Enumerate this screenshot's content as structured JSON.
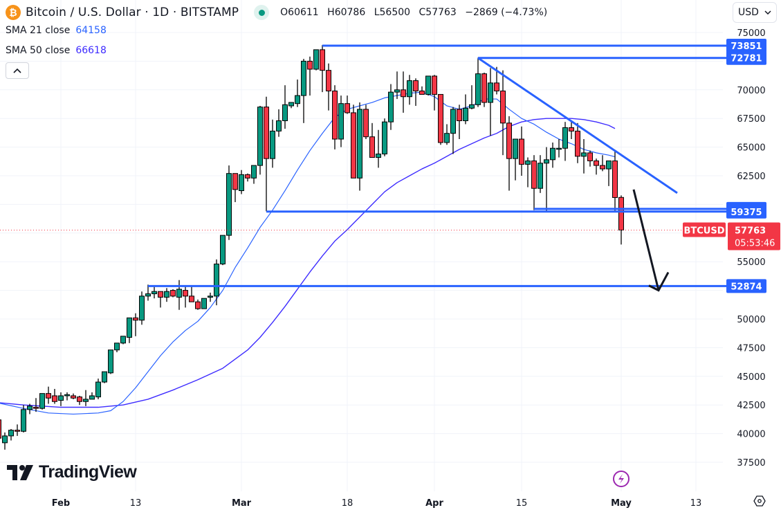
{
  "header": {
    "symbol_title": "Bitcoin / U.S. Dollar · 1D · BITSTAMP",
    "logo_glyph": "₿",
    "ohlc": {
      "open_label": "O",
      "open": "60611",
      "high_label": "H",
      "high": "60786",
      "low_label": "L",
      "low": "56500",
      "close_label": "C",
      "close": "57763",
      "change": "−2869 (−4.73%)"
    },
    "collapse_glyph": "⌃"
  },
  "indicators": [
    {
      "label": "SMA 21 close",
      "value": "64158",
      "color": "#2962ff"
    },
    {
      "label": "SMA 50 close",
      "value": "66618",
      "color": "#3d2bff"
    }
  ],
  "currency_select": {
    "value": "USD",
    "glyph": "⌄"
  },
  "branding": {
    "logo_text": "TradingView"
  },
  "price_tag": {
    "symbol": "BTCUSD",
    "price": "57763",
    "countdown": "05:53:46",
    "color": "#f23645"
  },
  "colors": {
    "up": "#089981",
    "down": "#f23645",
    "drawing": "#2962ff",
    "sma21": "#2962ff",
    "sma50": "#3d2bff",
    "grid": "#f0f3fa"
  },
  "chart_data": {
    "type": "candlestick",
    "title": "Bitcoin / U.S. Dollar · 1D · BITSTAMP",
    "xlabel": "",
    "ylabel": "USD",
    "ylim": [
      36000,
      76500
    ],
    "grid": true,
    "y_ticks": [
      75000,
      72500,
      70000,
      67500,
      65000,
      62500,
      60000,
      57500,
      55000,
      52500,
      50000,
      47500,
      45000,
      42500,
      40000,
      37500
    ],
    "y_tick_labels_visible": [
      "75000",
      "70000",
      "67500",
      "65000",
      "62500",
      "55000",
      "50000",
      "47500",
      "45000",
      "42500",
      "40000",
      "37500"
    ],
    "x_ticks": [
      {
        "label": "Feb",
        "day": 0,
        "bold": true
      },
      {
        "label": "13",
        "day": 12,
        "bold": false
      },
      {
        "label": "Mar",
        "day": 29,
        "bold": true
      },
      {
        "label": "18",
        "day": 46,
        "bold": false
      },
      {
        "label": "Apr",
        "day": 60,
        "bold": true
      },
      {
        "label": "15",
        "day": 74,
        "bold": false
      },
      {
        "label": "May",
        "day": 90,
        "bold": true
      },
      {
        "label": "13",
        "day": 102,
        "bold": false
      }
    ],
    "candles_note": "day = days from Feb 1 2024; [day, open, high, low, close]",
    "candles": [
      [
        -10,
        41200,
        42900,
        39800,
        39600
      ],
      [
        -9,
        39200,
        40100,
        38600,
        39800
      ],
      [
        -8,
        39800,
        40400,
        39400,
        40300
      ],
      [
        -7,
        40300,
        40800,
        39800,
        40200
      ],
      [
        -6,
        40200,
        42500,
        40100,
        42100
      ],
      [
        -5,
        42100,
        42600,
        41700,
        42400
      ],
      [
        -4,
        42300,
        43100,
        41900,
        42200
      ],
      [
        -3,
        42200,
        43500,
        42100,
        43500
      ],
      [
        -2,
        43500,
        44100,
        42600,
        43100
      ],
      [
        -1,
        43300,
        43900,
        42600,
        42800
      ],
      [
        0,
        42900,
        43600,
        42400,
        43300
      ],
      [
        1,
        43300,
        43600,
        42900,
        43400
      ],
      [
        2,
        43300,
        43500,
        43000,
        43100
      ],
      [
        3,
        43200,
        43300,
        42500,
        42800
      ],
      [
        4,
        42800,
        43800,
        42400,
        43000
      ],
      [
        5,
        43000,
        43600,
        43000,
        43300
      ],
      [
        6,
        43200,
        44800,
        43000,
        44500
      ],
      [
        7,
        44500,
        45400,
        44400,
        45400
      ],
      [
        8,
        45300,
        47300,
        45200,
        47300
      ],
      [
        9,
        47300,
        47700,
        47100,
        47900
      ],
      [
        10,
        47900,
        48500,
        47800,
        48500
      ],
      [
        11,
        48400,
        50100,
        47900,
        50100
      ],
      [
        12,
        50100,
        50500,
        48500,
        49900
      ],
      [
        13,
        49900,
        52400,
        49500,
        52000
      ],
      [
        14,
        52000,
        53000,
        51600,
        52200
      ],
      [
        15,
        52200,
        52800,
        51800,
        52400
      ],
      [
        16,
        52400,
        52400,
        51000,
        51900
      ],
      [
        17,
        51900,
        52700,
        51500,
        52400
      ],
      [
        18,
        52500,
        52600,
        51900,
        52000
      ],
      [
        19,
        51900,
        53400,
        50800,
        52600
      ],
      [
        20,
        52500,
        52900,
        51000,
        52000
      ],
      [
        21,
        52000,
        52800,
        51600,
        51500
      ],
      [
        22,
        51500,
        51700,
        50800,
        50900
      ],
      [
        23,
        50900,
        51800,
        50900,
        51800
      ],
      [
        24,
        51900,
        52300,
        51500,
        52000
      ],
      [
        25,
        52000,
        55200,
        51200,
        54800
      ],
      [
        26,
        54800,
        57300,
        54700,
        57300
      ],
      [
        27,
        57300,
        63400,
        56900,
        62700
      ],
      [
        28,
        62700,
        62300,
        60200,
        61300
      ],
      [
        29,
        61200,
        63000,
        60900,
        62600
      ],
      [
        30,
        62600,
        62700,
        62000,
        62300
      ],
      [
        31,
        62300,
        63400,
        61800,
        63400
      ],
      [
        32,
        63400,
        68600,
        62600,
        68500
      ],
      [
        33,
        68500,
        69400,
        59400,
        64000
      ],
      [
        34,
        64000,
        67400,
        63200,
        66400
      ],
      [
        35,
        66400,
        68300,
        65900,
        67300
      ],
      [
        36,
        67300,
        70400,
        66600,
        68700
      ],
      [
        37,
        68600,
        68900,
        68400,
        68900
      ],
      [
        38,
        68800,
        70900,
        68500,
        69500
      ],
      [
        39,
        69500,
        72700,
        67100,
        72500
      ],
      [
        40,
        72500,
        72900,
        69500,
        71800
      ],
      [
        41,
        71800,
        73400,
        71700,
        73500
      ],
      [
        42,
        73500,
        73900,
        69800,
        71700
      ],
      [
        43,
        71700,
        72300,
        68200,
        69900
      ],
      [
        44,
        69900,
        70400,
        64800,
        65700
      ],
      [
        45,
        65700,
        69500,
        65000,
        68800
      ],
      [
        46,
        68800,
        69500,
        67900,
        68000
      ],
      [
        47,
        68000,
        68700,
        64400,
        62300
      ],
      [
        48,
        62300,
        68900,
        61200,
        68300
      ],
      [
        49,
        68300,
        68700,
        65700,
        65900
      ],
      [
        50,
        65900,
        67100,
        64400,
        64100
      ],
      [
        51,
        64100,
        66500,
        63200,
        64400
      ],
      [
        52,
        64400,
        67500,
        64200,
        67200
      ],
      [
        53,
        67200,
        70500,
        66500,
        69800
      ],
      [
        54,
        69800,
        71600,
        69200,
        70000
      ],
      [
        55,
        70000,
        71600,
        68000,
        69400
      ],
      [
        56,
        69400,
        71300,
        68700,
        70800
      ],
      [
        57,
        70800,
        71000,
        68600,
        69900
      ],
      [
        58,
        69900,
        70300,
        69600,
        69600
      ],
      [
        59,
        69600,
        71200,
        69500,
        71200
      ],
      [
        60,
        71200,
        71300,
        68200,
        69600
      ],
      [
        61,
        69600,
        69600,
        65200,
        65400
      ],
      [
        62,
        65400,
        67000,
        65200,
        66200
      ],
      [
        63,
        66200,
        68500,
        64400,
        68300
      ],
      [
        64,
        68300,
        68700,
        65700,
        67300
      ],
      [
        65,
        67300,
        69600,
        67000,
        68400
      ],
      [
        66,
        68400,
        70400,
        68300,
        68700
      ],
      [
        67,
        68700,
        72800,
        68500,
        71400
      ],
      [
        68,
        71400,
        71500,
        68500,
        68900
      ],
      [
        69,
        68900,
        71900,
        66000,
        70600
      ],
      [
        70,
        70600,
        72000,
        69600,
        69900
      ],
      [
        71,
        69900,
        71700,
        64300,
        67100
      ],
      [
        72,
        67100,
        67700,
        61200,
        64000
      ],
      [
        73,
        64000,
        65000,
        62100,
        65700
      ],
      [
        74,
        65700,
        66800,
        62500,
        63500
      ],
      [
        75,
        63500,
        64100,
        61500,
        63800
      ],
      [
        76,
        63800,
        64300,
        59500,
        61400
      ],
      [
        77,
        61400,
        64300,
        61000,
        63600
      ],
      [
        78,
        63600,
        65000,
        59400,
        63900
      ],
      [
        79,
        63900,
        65400,
        63200,
        64900
      ],
      [
        80,
        64900,
        65700,
        64100,
        64900
      ],
      [
        81,
        64900,
        67200,
        63800,
        66700
      ],
      [
        82,
        66700,
        67200,
        65700,
        66400
      ],
      [
        83,
        66400,
        67100,
        63600,
        64200
      ],
      [
        84,
        64200,
        65700,
        62700,
        64500
      ],
      [
        85,
        64500,
        64700,
        63300,
        63800
      ],
      [
        86,
        63800,
        64000,
        62600,
        63400
      ],
      [
        87,
        63400,
        64300,
        62900,
        63100
      ],
      [
        88,
        63100,
        63800,
        61600,
        63800
      ],
      [
        89,
        63800,
        64700,
        59400,
        60600
      ],
      [
        90,
        60611,
        60786,
        56500,
        57763
      ]
    ],
    "sma21": [
      [
        -12,
        42900
      ],
      [
        -6,
        42200
      ],
      [
        -2,
        41800
      ],
      [
        2,
        41700
      ],
      [
        6,
        41800
      ],
      [
        8,
        42000
      ],
      [
        10,
        42800
      ],
      [
        12,
        44000
      ],
      [
        14,
        45400
      ],
      [
        16,
        46800
      ],
      [
        18,
        48000
      ],
      [
        20,
        49000
      ],
      [
        22,
        49800
      ],
      [
        24,
        51000
      ],
      [
        26,
        52500
      ],
      [
        28,
        54500
      ],
      [
        30,
        56200
      ],
      [
        32,
        58000
      ],
      [
        34,
        59500
      ],
      [
        36,
        61200
      ],
      [
        38,
        63000
      ],
      [
        40,
        64700
      ],
      [
        42,
        66200
      ],
      [
        44,
        67600
      ],
      [
        46,
        68300
      ],
      [
        48,
        68600
      ],
      [
        50,
        68900
      ],
      [
        52,
        69300
      ],
      [
        54,
        69500
      ],
      [
        56,
        69700
      ],
      [
        58,
        69800
      ],
      [
        60,
        69400
      ],
      [
        62,
        68600
      ],
      [
        64,
        68300
      ],
      [
        66,
        68600
      ],
      [
        68,
        69200
      ],
      [
        70,
        69200
      ],
      [
        72,
        68300
      ],
      [
        74,
        67500
      ],
      [
        76,
        67000
      ],
      [
        78,
        66300
      ],
      [
        80,
        65700
      ],
      [
        82,
        65300
      ],
      [
        84,
        64800
      ],
      [
        86,
        64500
      ],
      [
        88,
        64300
      ],
      [
        89,
        64158
      ]
    ],
    "sma50": [
      [
        -12,
        42800
      ],
      [
        -6,
        42500
      ],
      [
        0,
        42300
      ],
      [
        6,
        42300
      ],
      [
        10,
        42500
      ],
      [
        14,
        43000
      ],
      [
        18,
        43800
      ],
      [
        22,
        44700
      ],
      [
        26,
        45700
      ],
      [
        30,
        47300
      ],
      [
        32,
        48400
      ],
      [
        34,
        49700
      ],
      [
        36,
        51100
      ],
      [
        38,
        52600
      ],
      [
        40,
        54100
      ],
      [
        42,
        55500
      ],
      [
        44,
        56800
      ],
      [
        46,
        57800
      ],
      [
        48,
        58900
      ],
      [
        50,
        60000
      ],
      [
        52,
        61100
      ],
      [
        54,
        61900
      ],
      [
        56,
        62500
      ],
      [
        58,
        63100
      ],
      [
        60,
        63600
      ],
      [
        62,
        64200
      ],
      [
        64,
        64800
      ],
      [
        66,
        65300
      ],
      [
        68,
        65800
      ],
      [
        70,
        66200
      ],
      [
        72,
        66800
      ],
      [
        74,
        67200
      ],
      [
        76,
        67400
      ],
      [
        78,
        67500
      ],
      [
        80,
        67500
      ],
      [
        82,
        67500
      ],
      [
        84,
        67400
      ],
      [
        86,
        67200
      ],
      [
        88,
        66900
      ],
      [
        89,
        66618
      ]
    ],
    "drawings": {
      "horizontal_levels": [
        {
          "label": "73851",
          "price": 73851,
          "from_day": 42
        },
        {
          "label": "72781",
          "price": 72781,
          "from_day": 67
        },
        {
          "label": "59611",
          "price": 59611,
          "from_day": 76
        },
        {
          "label": "59375",
          "price": 59375,
          "from_day": 33
        },
        {
          "label": "52874",
          "price": 52874,
          "from_day": 14
        }
      ],
      "trendline": {
        "from": [
          67,
          72781
        ],
        "to": [
          99,
          61000
        ]
      },
      "arrow": {
        "from": [
          92,
          61300
        ],
        "to": [
          96,
          52500
        ],
        "color": "#131722"
      }
    },
    "events": [
      {
        "type": "lightning",
        "day": 90,
        "color": "#9c27b0"
      }
    ]
  }
}
